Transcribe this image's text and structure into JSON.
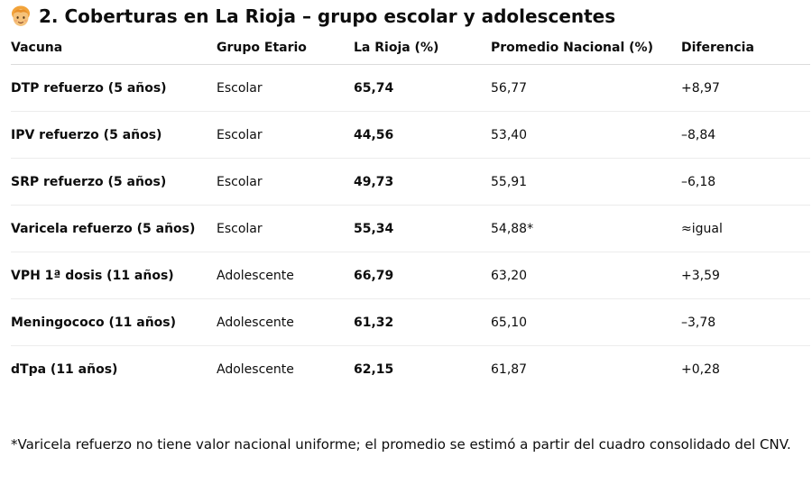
{
  "heading": {
    "icon": "child-emoji-icon",
    "title": "2. Coberturas en La Rioja – grupo escolar y adolescentes"
  },
  "table": {
    "headers": {
      "vacuna": "Vacuna",
      "grupo": "Grupo Etario",
      "rioja": "La Rioja (%)",
      "nacional": "Promedio Nacional (%)",
      "diferencia": "Diferencia"
    },
    "rows": [
      {
        "vacuna": "DTP refuerzo (5 años)",
        "grupo": "Escolar",
        "rioja": "65,74",
        "nacional": "56,77",
        "diferencia": "+8,97"
      },
      {
        "vacuna": "IPV refuerzo (5 años)",
        "grupo": "Escolar",
        "rioja": "44,56",
        "nacional": "53,40",
        "diferencia": "–8,84"
      },
      {
        "vacuna": "SRP refuerzo (5 años)",
        "grupo": "Escolar",
        "rioja": "49,73",
        "nacional": "55,91",
        "diferencia": "–6,18"
      },
      {
        "vacuna": "Varicela refuerzo (5 años)",
        "grupo": "Escolar",
        "rioja": "55,34",
        "nacional": "54,88*",
        "diferencia": "≈igual"
      },
      {
        "vacuna": "VPH 1ª dosis (11 años)",
        "grupo": "Adolescente",
        "rioja": "66,79",
        "nacional": "63,20",
        "diferencia": "+3,59"
      },
      {
        "vacuna": "Meningococo (11 años)",
        "grupo": "Adolescente",
        "rioja": "61,32",
        "nacional": "65,10",
        "diferencia": "–3,78"
      },
      {
        "vacuna": "dTpa (11 años)",
        "grupo": "Adolescente",
        "rioja": "62,15",
        "nacional": "61,87",
        "diferencia": "+0,28"
      }
    ]
  },
  "footnote": "*Varicela refuerzo no tiene valor nacional uniforme; el promedio se estimó a partir del cuadro consolidado del CNV."
}
